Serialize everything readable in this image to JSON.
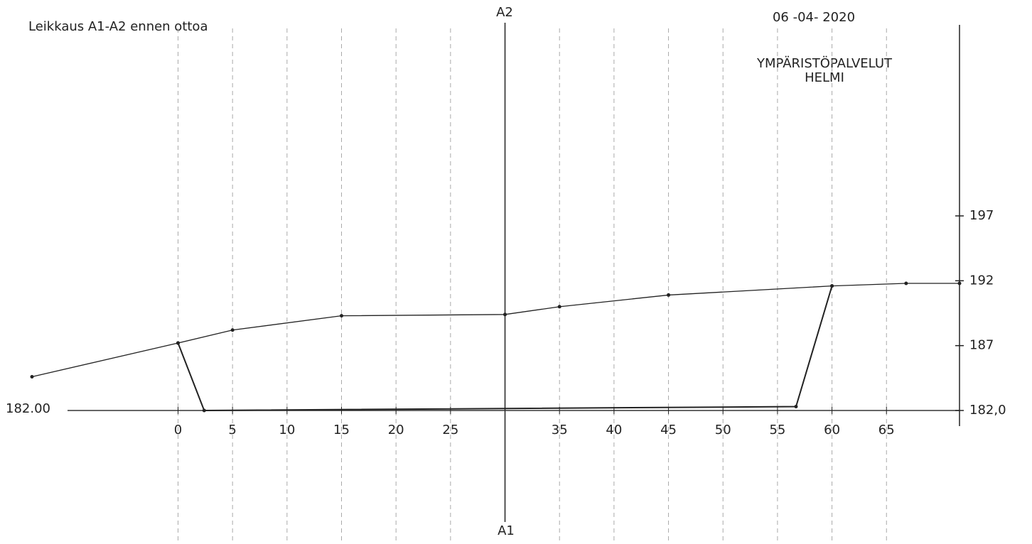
{
  "chart_data": {
    "type": "line",
    "title": "Leikkaus A1-A2 ennen ottoa",
    "axis_top_label": "A2",
    "axis_bottom_label": "A1",
    "axis_x": 30,
    "stamp": {
      "date": "06 -04- 2020",
      "line1": "YMPÄRISTÖPALVELUT",
      "line2": "HELMI",
      "color": "#6a9ae0"
    },
    "series": [
      {
        "x": [
          -13.4,
          0,
          5,
          15,
          30,
          35,
          45,
          60,
          66.8,
          71.7
        ],
        "values": [
          184.6,
          187.2,
          188.2,
          189.3,
          189.4,
          190.0,
          190.9,
          191.6,
          191.8,
          191.8
        ],
        "color": "#222"
      },
      {
        "x": [
          0,
          2.4,
          56.7,
          60
        ],
        "values": [
          187.2,
          182,
          182.3,
          191.6
        ],
        "color": "#222"
      }
    ],
    "baseline": 182,
    "baseline_label": {
      "value": 182,
      "label": "182.00"
    },
    "xlim": [
      -13.4,
      71.7
    ],
    "ylim": [
      182,
      197
    ],
    "xticks": [
      0,
      5,
      10,
      15,
      20,
      25,
      35,
      40,
      45,
      50,
      55,
      60,
      65
    ],
    "yticks": [
      {
        "value": 182,
        "label": "182,0"
      },
      187,
      192,
      197
    ],
    "grid": true
  }
}
